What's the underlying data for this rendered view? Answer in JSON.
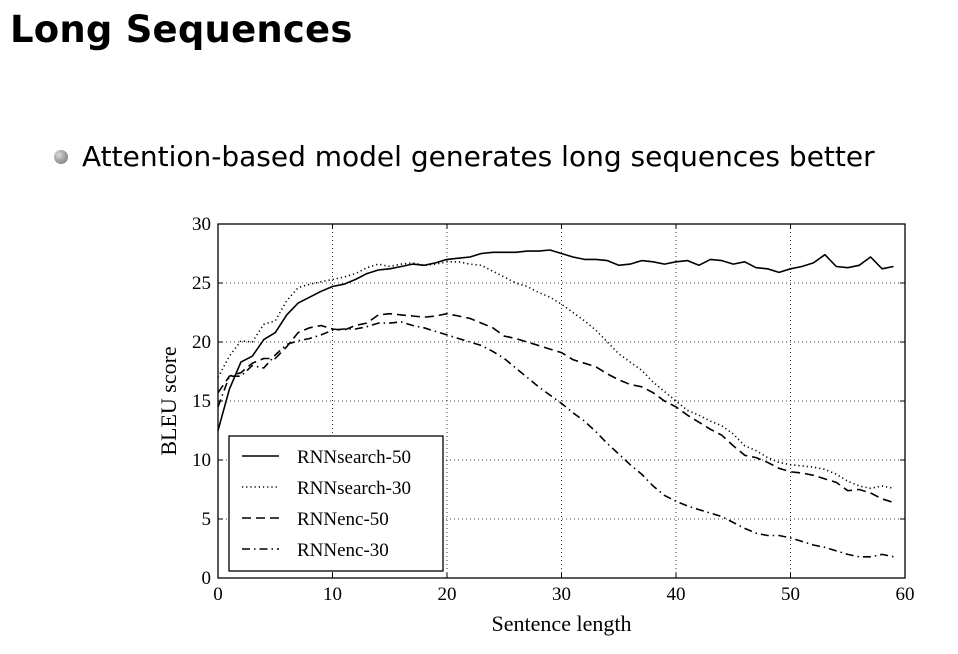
{
  "slide": {
    "title": "Long Sequences",
    "bullets": [
      "Attention-based model generates long sequences better"
    ]
  },
  "chart_data": {
    "type": "line",
    "xlabel": "Sentence length",
    "ylabel": "BLEU score",
    "xlim": [
      0,
      60
    ],
    "ylim": [
      0,
      30
    ],
    "xticks": [
      0,
      10,
      20,
      30,
      40,
      50,
      60
    ],
    "yticks": [
      0,
      5,
      10,
      15,
      20,
      25,
      30
    ],
    "grid": true,
    "legend_position": "bottom-left",
    "x": [
      0,
      1,
      2,
      3,
      4,
      5,
      6,
      7,
      8,
      9,
      10,
      11,
      12,
      13,
      14,
      15,
      16,
      17,
      18,
      19,
      20,
      21,
      22,
      23,
      24,
      25,
      26,
      27,
      28,
      29,
      30,
      31,
      32,
      33,
      34,
      35,
      36,
      37,
      38,
      39,
      40,
      41,
      42,
      43,
      44,
      45,
      46,
      47,
      48,
      49,
      50,
      51,
      52,
      53,
      54,
      55,
      56,
      57,
      58,
      59
    ],
    "series": [
      {
        "name": "RNNsearch-50",
        "style": "solid",
        "values": [
          12.5,
          16.0,
          18.3,
          18.8,
          20.2,
          20.8,
          22.3,
          23.3,
          23.8,
          24.3,
          24.7,
          24.9,
          25.3,
          25.8,
          26.1,
          26.2,
          26.4,
          26.6,
          26.5,
          26.7,
          27.0,
          27.1,
          27.2,
          27.5,
          27.6,
          27.6,
          27.6,
          27.7,
          27.7,
          27.8,
          27.5,
          27.2,
          27.0,
          27.0,
          26.9,
          26.5,
          26.6,
          26.9,
          26.8,
          26.6,
          26.8,
          26.9,
          26.5,
          27.0,
          26.9,
          26.6,
          26.8,
          26.3,
          26.2,
          25.9,
          26.2,
          26.4,
          26.7,
          27.4,
          26.4,
          26.3,
          26.5,
          27.2,
          26.2,
          26.4
        ]
      },
      {
        "name": "RNNsearch-30",
        "style": "dotted",
        "values": [
          17.0,
          18.8,
          20.1,
          20.0,
          21.5,
          21.8,
          23.5,
          24.6,
          24.9,
          25.1,
          25.3,
          25.5,
          25.8,
          26.3,
          26.6,
          26.4,
          26.6,
          26.7,
          26.5,
          26.6,
          26.8,
          26.8,
          26.6,
          26.5,
          26.0,
          25.5,
          25.0,
          24.7,
          24.2,
          23.8,
          23.2,
          22.5,
          21.8,
          21.0,
          20.0,
          19.0,
          18.3,
          17.6,
          16.6,
          15.8,
          15.0,
          14.2,
          13.8,
          13.3,
          12.9,
          12.2,
          11.2,
          10.8,
          10.2,
          9.8,
          9.6,
          9.5,
          9.4,
          9.2,
          8.8,
          8.2,
          7.8,
          7.6,
          7.8,
          7.6
        ]
      },
      {
        "name": "RNNenc-50",
        "style": "dashed",
        "values": [
          15.7,
          17.1,
          17.4,
          18.2,
          18.6,
          18.6,
          19.6,
          20.8,
          21.2,
          21.4,
          21.1,
          21.0,
          21.4,
          21.6,
          22.3,
          22.4,
          22.3,
          22.2,
          22.1,
          22.2,
          22.4,
          22.2,
          22.0,
          21.6,
          21.2,
          20.5,
          20.3,
          20.0,
          19.7,
          19.4,
          19.1,
          18.5,
          18.2,
          17.9,
          17.3,
          16.8,
          16.4,
          16.2,
          15.7,
          15.0,
          14.5,
          13.8,
          13.2,
          12.6,
          12.1,
          11.2,
          10.4,
          10.2,
          9.8,
          9.3,
          9.0,
          8.9,
          8.7,
          8.4,
          8.1,
          7.4,
          7.5,
          7.2,
          6.7,
          6.4
        ]
      },
      {
        "name": "RNNenc-30",
        "style": "dashdot",
        "values": [
          14.5,
          17.1,
          17.1,
          18.0,
          17.8,
          18.9,
          19.8,
          20.1,
          20.3,
          20.6,
          21.0,
          21.1,
          21.1,
          21.3,
          21.6,
          21.6,
          21.7,
          21.4,
          21.2,
          20.9,
          20.6,
          20.3,
          20.0,
          19.7,
          19.2,
          18.6,
          17.8,
          17.0,
          16.2,
          15.5,
          14.8,
          14.0,
          13.3,
          12.4,
          11.4,
          10.5,
          9.6,
          8.8,
          7.8,
          7.0,
          6.5,
          6.1,
          5.8,
          5.5,
          5.2,
          4.7,
          4.2,
          3.8,
          3.6,
          3.6,
          3.4,
          3.1,
          2.8,
          2.6,
          2.3,
          2.0,
          1.8,
          1.8,
          2.0,
          1.8
        ]
      }
    ]
  }
}
